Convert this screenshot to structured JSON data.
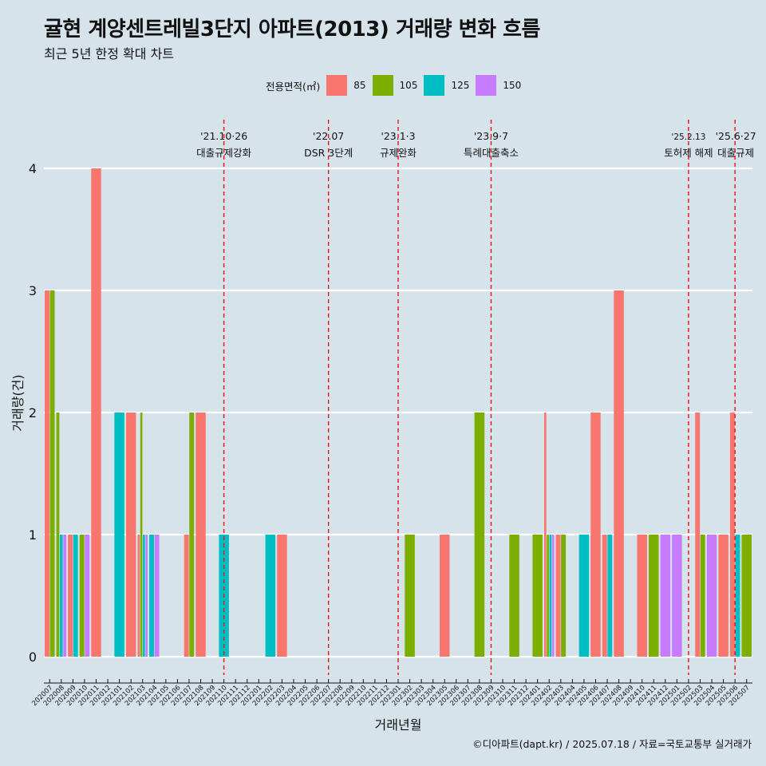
{
  "header": {
    "title": "귤현 계양센트레빌3단지 아파트(2013) 거래량 변화 흐름",
    "subtitle": "최근 5년 한정 확대 차트"
  },
  "legend": {
    "title": "전용면적(㎡)",
    "items": [
      {
        "label": "85",
        "color": "#f8766d"
      },
      {
        "label": "105",
        "color": "#7cae00"
      },
      {
        "label": "125",
        "color": "#00bfc4"
      },
      {
        "label": "150",
        "color": "#c77cff"
      }
    ]
  },
  "caption": "©디아파트(dapt.kr) / 2025.07.18 / 자료=국토교통부 실거래가",
  "chart_data": {
    "type": "bar",
    "xlabel": "거래년월",
    "ylabel": "거래량(건)",
    "ylim": [
      0,
      4
    ],
    "yticks": [
      0,
      1,
      2,
      3,
      4
    ],
    "grid": true,
    "legend_position": "top",
    "categories": [
      "202007",
      "202008",
      "202009",
      "202010",
      "202011",
      "202012",
      "202101",
      "202102",
      "202103",
      "202104",
      "202105",
      "202106",
      "202107",
      "202108",
      "202109",
      "202110",
      "202111",
      "202112",
      "202201",
      "202202",
      "202203",
      "202204",
      "202205",
      "202206",
      "202207",
      "202208",
      "202209",
      "202210",
      "202211",
      "202212",
      "202301",
      "202302",
      "202303",
      "202304",
      "202305",
      "202306",
      "202307",
      "202308",
      "202309",
      "202310",
      "202311",
      "202312",
      "202401",
      "202402",
      "202403",
      "202404",
      "202405",
      "202406",
      "202407",
      "202408",
      "202409",
      "202410",
      "202411",
      "202412",
      "202501",
      "202502",
      "202503",
      "202504",
      "202505",
      "202506",
      "202507"
    ],
    "records": [
      {
        "month": "202007",
        "area": "85",
        "count": 3
      },
      {
        "month": "202007",
        "area": "105",
        "count": 3
      },
      {
        "month": "202008",
        "area": "105",
        "count": 2
      },
      {
        "month": "202008",
        "area": "125",
        "count": 1
      },
      {
        "month": "202008",
        "area": "150",
        "count": 1
      },
      {
        "month": "202009",
        "area": "85",
        "count": 1
      },
      {
        "month": "202009",
        "area": "125",
        "count": 1
      },
      {
        "month": "202010",
        "area": "105",
        "count": 1
      },
      {
        "month": "202010",
        "area": "150",
        "count": 1
      },
      {
        "month": "202011",
        "area": "85",
        "count": 4
      },
      {
        "month": "202101",
        "area": "125",
        "count": 2
      },
      {
        "month": "202102",
        "area": "85",
        "count": 2
      },
      {
        "month": "202103",
        "area": "85",
        "count": 1
      },
      {
        "month": "202103",
        "area": "105",
        "count": 2
      },
      {
        "month": "202103",
        "area": "125",
        "count": 1
      },
      {
        "month": "202103",
        "area": "150",
        "count": 1
      },
      {
        "month": "202104",
        "area": "125",
        "count": 1
      },
      {
        "month": "202104",
        "area": "150",
        "count": 1
      },
      {
        "month": "202107",
        "area": "85",
        "count": 1
      },
      {
        "month": "202107",
        "area": "105",
        "count": 2
      },
      {
        "month": "202108",
        "area": "85",
        "count": 2
      },
      {
        "month": "202110",
        "area": "125",
        "count": 1
      },
      {
        "month": "202202",
        "area": "125",
        "count": 1
      },
      {
        "month": "202203",
        "area": "85",
        "count": 1
      },
      {
        "month": "202302",
        "area": "105",
        "count": 1
      },
      {
        "month": "202305",
        "area": "85",
        "count": 1
      },
      {
        "month": "202308",
        "area": "105",
        "count": 2
      },
      {
        "month": "202311",
        "area": "105",
        "count": 1
      },
      {
        "month": "202401",
        "area": "105",
        "count": 1
      },
      {
        "month": "202402",
        "area": "85",
        "count": 2
      },
      {
        "month": "202402",
        "area": "105",
        "count": 1
      },
      {
        "month": "202402",
        "area": "125",
        "count": 1
      },
      {
        "month": "202402",
        "area": "150",
        "count": 1
      },
      {
        "month": "202403",
        "area": "85",
        "count": 1
      },
      {
        "month": "202403",
        "area": "105",
        "count": 1
      },
      {
        "month": "202405",
        "area": "125",
        "count": 1
      },
      {
        "month": "202406",
        "area": "85",
        "count": 2
      },
      {
        "month": "202407",
        "area": "85",
        "count": 1
      },
      {
        "month": "202407",
        "area": "125",
        "count": 1
      },
      {
        "month": "202408",
        "area": "85",
        "count": 3
      },
      {
        "month": "202410",
        "area": "85",
        "count": 1
      },
      {
        "month": "202411",
        "area": "105",
        "count": 1
      },
      {
        "month": "202412",
        "area": "150",
        "count": 1
      },
      {
        "month": "202501",
        "area": "150",
        "count": 1
      },
      {
        "month": "202503",
        "area": "85",
        "count": 2
      },
      {
        "month": "202503",
        "area": "105",
        "count": 1
      },
      {
        "month": "202504",
        "area": "150",
        "count": 1
      },
      {
        "month": "202505",
        "area": "85",
        "count": 1
      },
      {
        "month": "202506",
        "area": "85",
        "count": 2
      },
      {
        "month": "202506",
        "area": "125",
        "count": 1
      },
      {
        "month": "202507",
        "area": "105",
        "count": 1
      }
    ],
    "events": [
      {
        "x": 15.5,
        "date": "'21.10·26",
        "label": "대출규제강화"
      },
      {
        "x": 24.5,
        "date": "'22.07",
        "label": "DSR 3단계"
      },
      {
        "x": 30.5,
        "date": "'23.1·3",
        "label": "규제완화"
      },
      {
        "x": 38.5,
        "date": "'23.9·7",
        "label": "특례대출축소"
      },
      {
        "x": 55.5,
        "date": "'25.2.13",
        "label": "토허제 해제"
      },
      {
        "x": 59.5,
        "date": "'25.6·27",
        "label": "대출규제"
      }
    ]
  }
}
